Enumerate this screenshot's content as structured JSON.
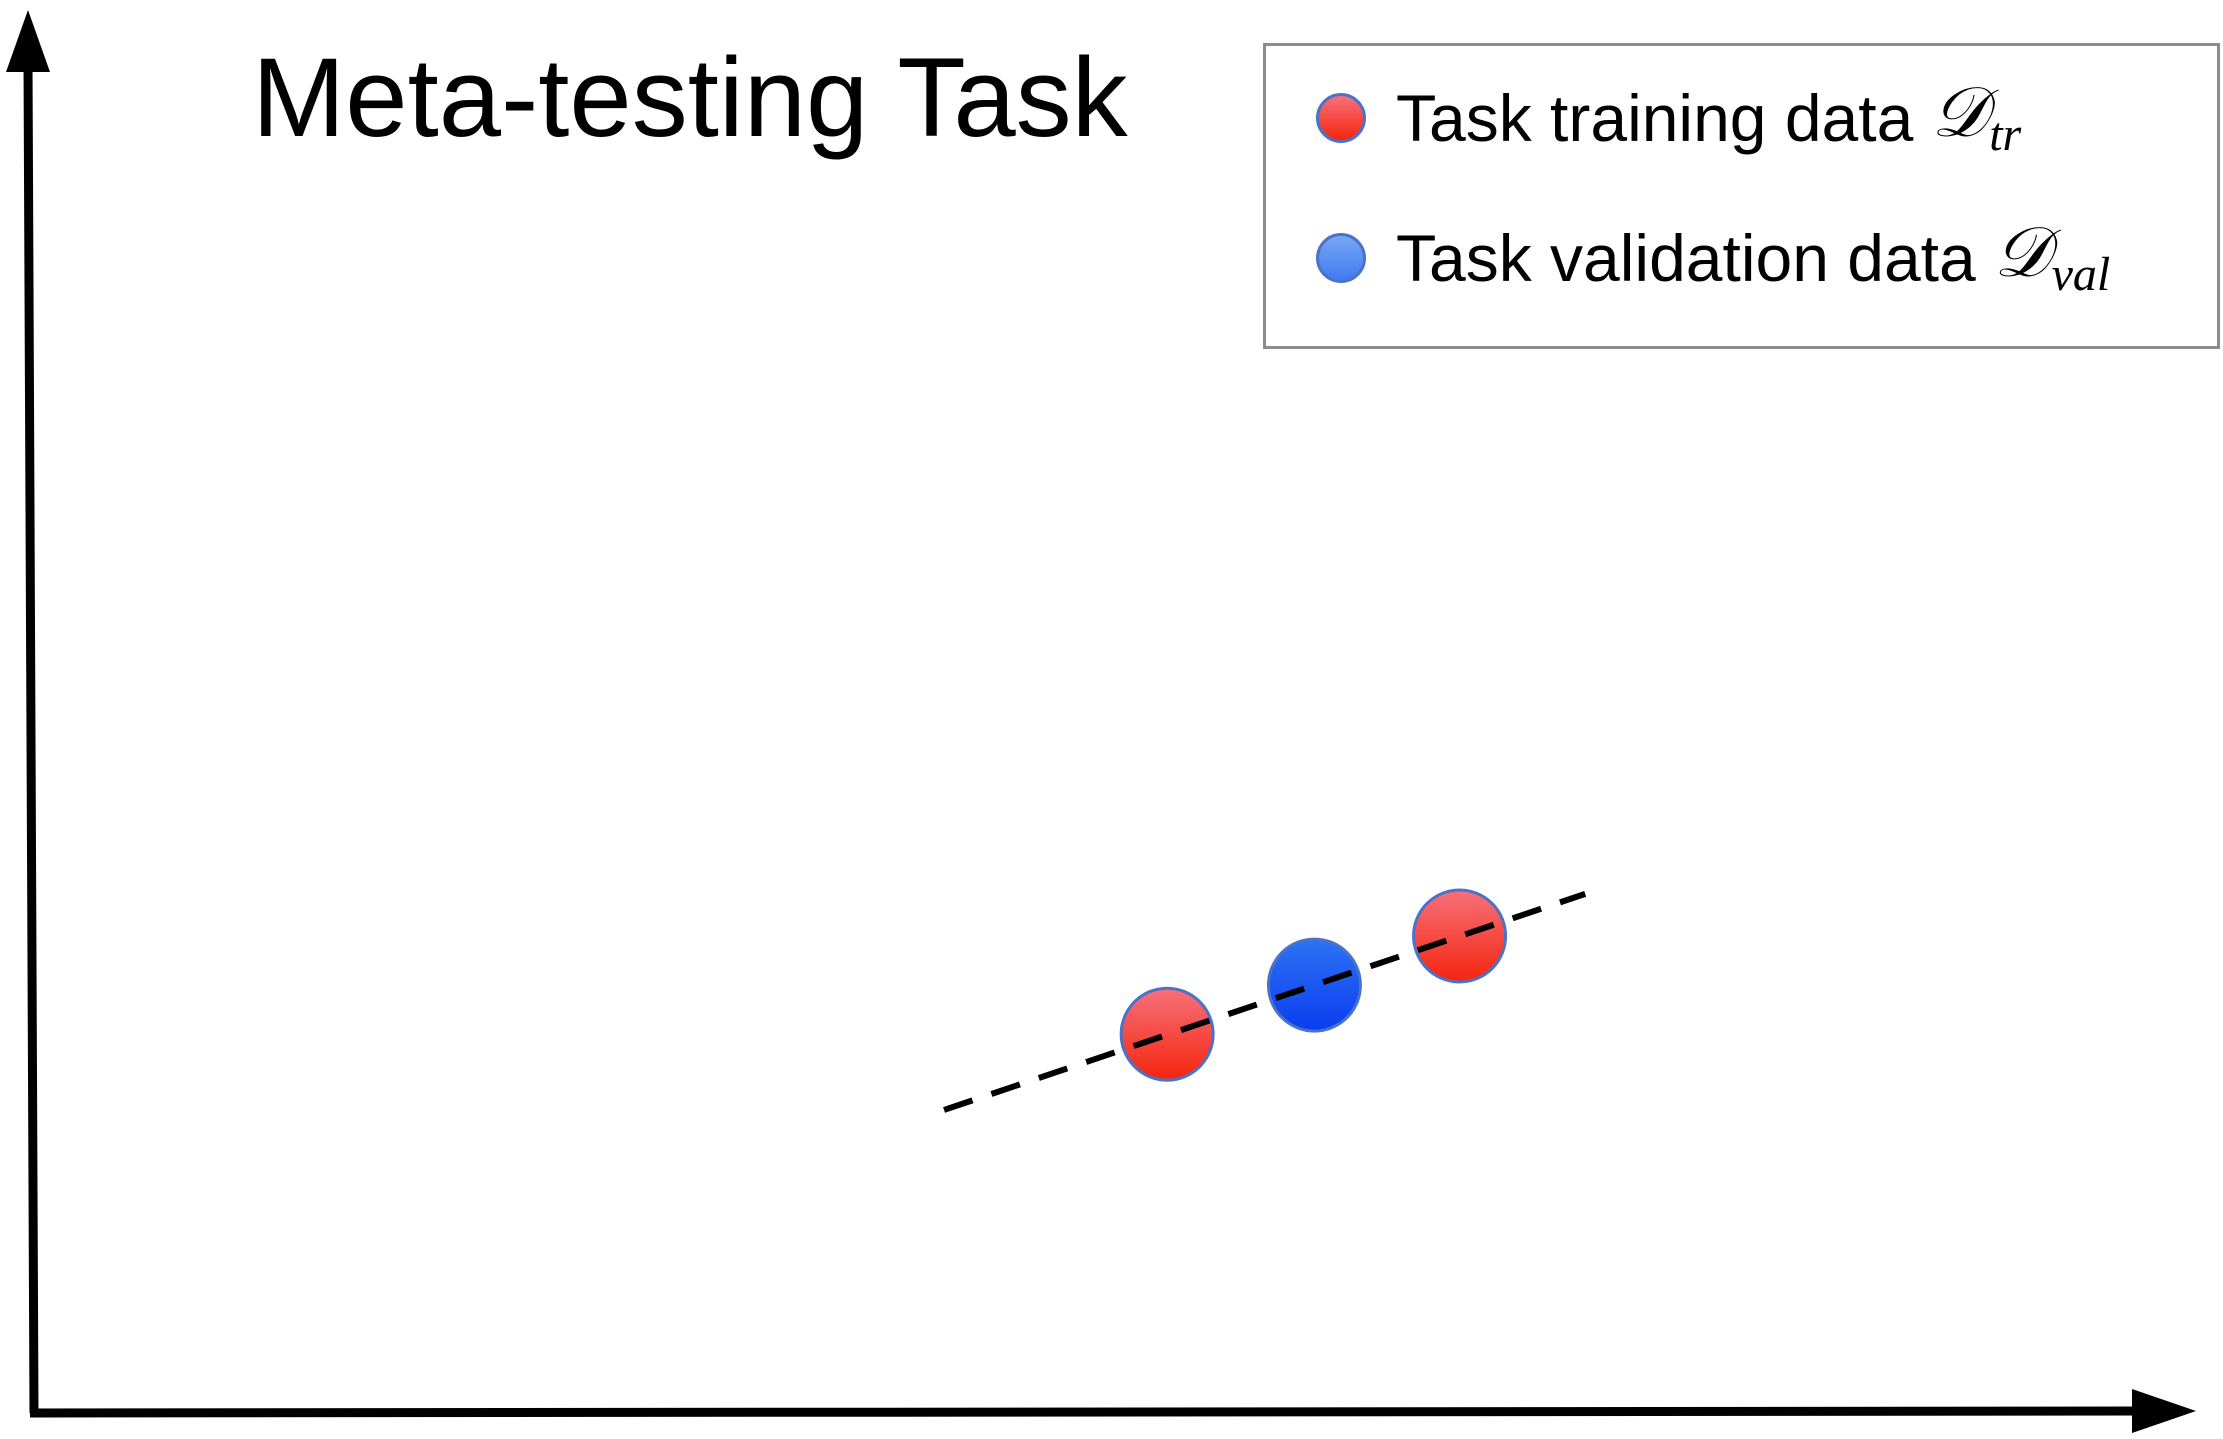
{
  "title": "Meta-testing Task",
  "legend": {
    "training": {
      "label": "Task training data",
      "symbol": "𝒟",
      "subscript": "tr",
      "color": "#f43a38"
    },
    "validation": {
      "label": "Task validation data",
      "symbol": "𝒟",
      "subscript": "val",
      "color": "#1f5fe8"
    }
  },
  "colors": {
    "axis": "#000000",
    "line": "#000000",
    "point_border": "#4a72c8",
    "legend_border": "#8c8c8c"
  },
  "chart_data": {
    "type": "scatter",
    "title": "Meta-testing Task",
    "xlabel": "",
    "ylabel": "",
    "xlim": [
      0,
      100
    ],
    "ylim": [
      0,
      100
    ],
    "grid": false,
    "legend": "top-right",
    "series": [
      {
        "name": "Task training data",
        "color": "#f43a38",
        "points": [
          [
            52.5,
            27.0
          ],
          [
            66.0,
            34.0
          ]
        ]
      },
      {
        "name": "Task validation data",
        "color": "#1f5fe8",
        "points": [
          [
            59.3,
            30.5
          ]
        ]
      }
    ],
    "fit_line": {
      "style": "dashed",
      "x": [
        42.2,
        71.8
      ],
      "y": [
        21.6,
        37.0
      ]
    }
  }
}
